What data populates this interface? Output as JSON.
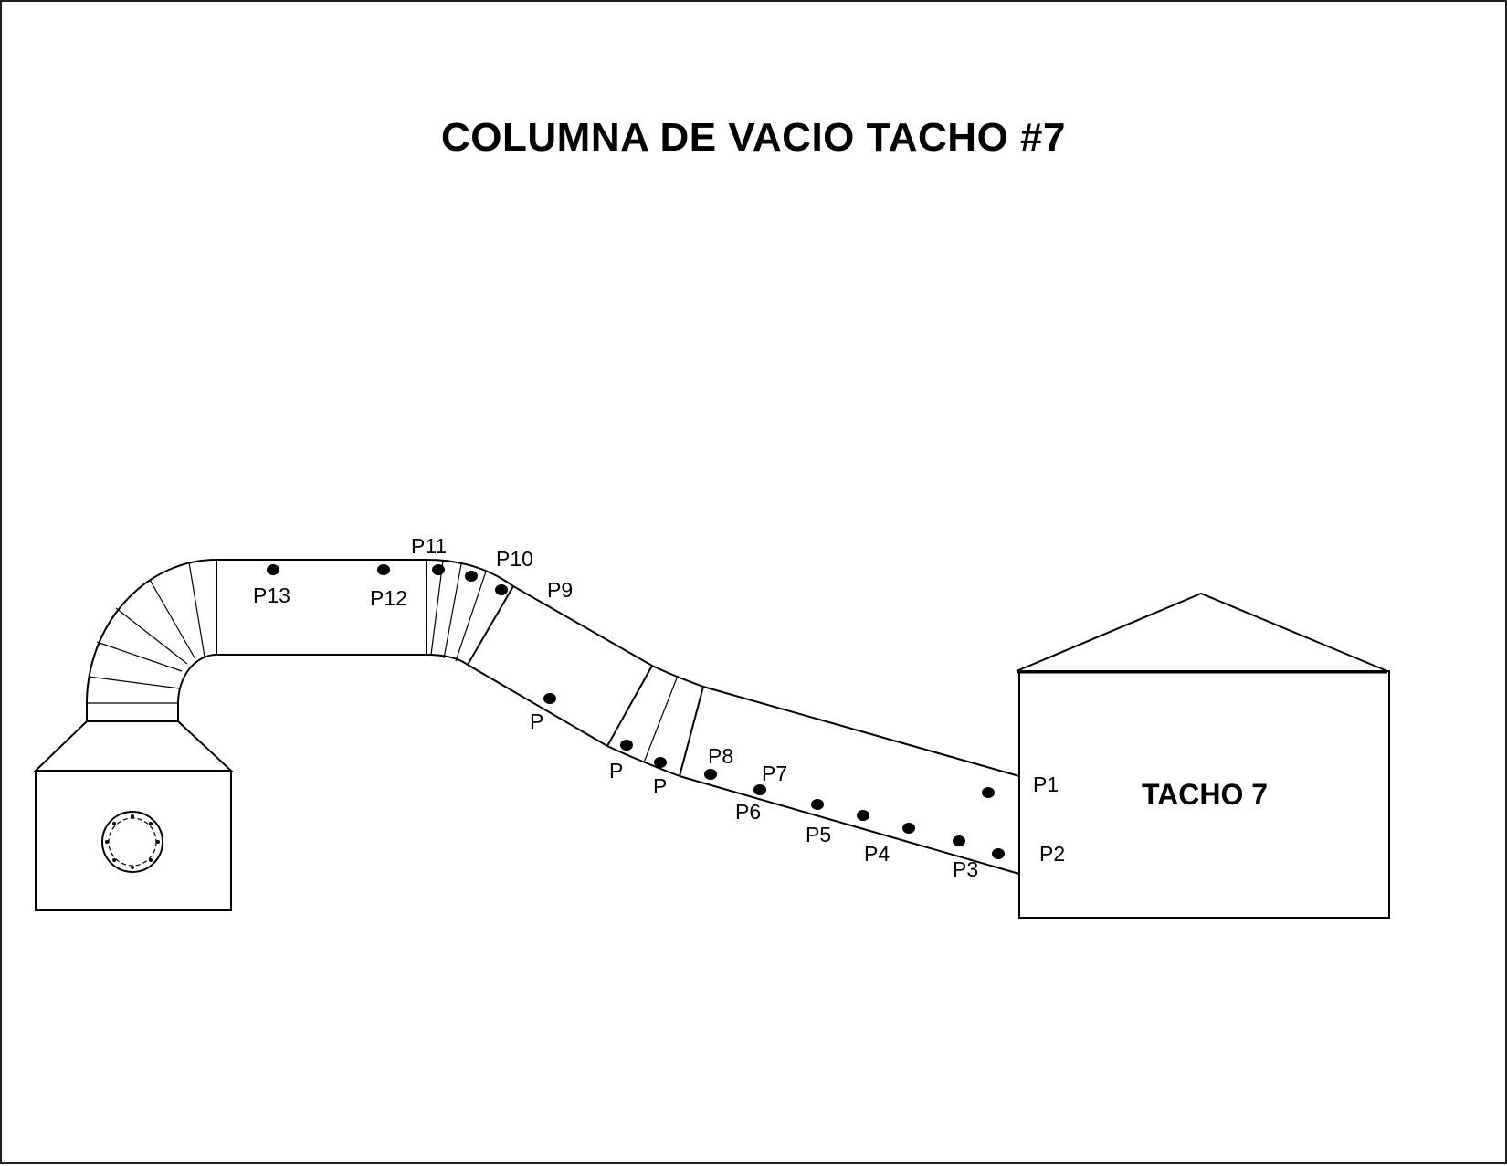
{
  "title": "COLUMNA DE VACIO TACHO #7",
  "tank_label": "TACHO 7",
  "points": [
    {
      "id": "p1",
      "label": "P1"
    },
    {
      "id": "p2",
      "label": "P2"
    },
    {
      "id": "p3",
      "label": "P3"
    },
    {
      "id": "p4",
      "label": "P4"
    },
    {
      "id": "p5",
      "label": "P5"
    },
    {
      "id": "p6",
      "label": "P6"
    },
    {
      "id": "p7",
      "label": "P7"
    },
    {
      "id": "p8",
      "label": "P8"
    },
    {
      "id": "pa",
      "label": "P"
    },
    {
      "id": "pb",
      "label": "P"
    },
    {
      "id": "pc",
      "label": "P"
    },
    {
      "id": "p9",
      "label": "P9"
    },
    {
      "id": "p10",
      "label": "P10"
    },
    {
      "id": "p11",
      "label": "P11"
    },
    {
      "id": "p12",
      "label": "P12"
    },
    {
      "id": "p13",
      "label": "P13"
    }
  ]
}
